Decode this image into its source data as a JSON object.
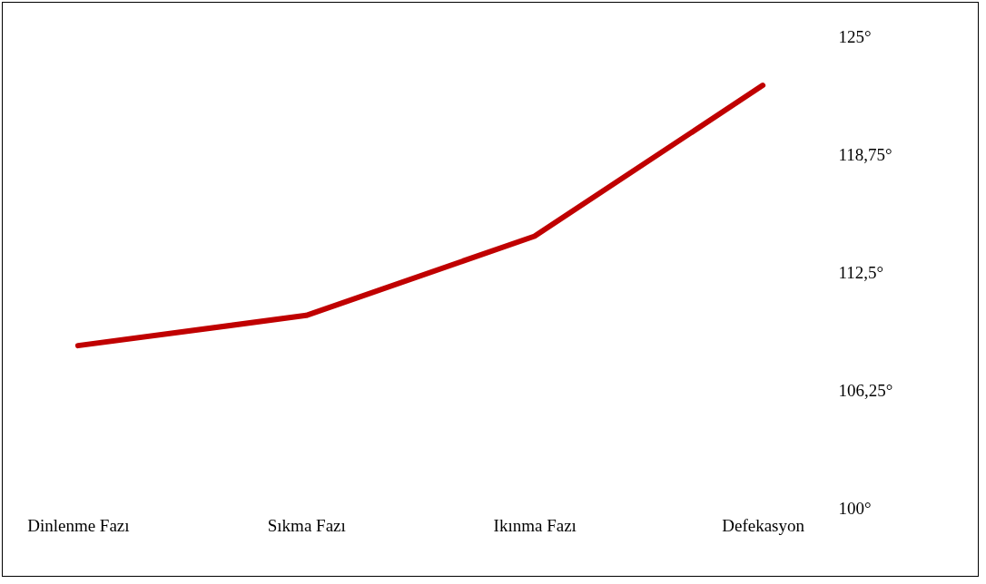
{
  "chart_data": {
    "type": "line",
    "categories": [
      "Dinlenme Fazı",
      "Sıkma Fazı",
      "Ikınma Fazı",
      "Defekasyon"
    ],
    "series": [
      {
        "color": "#c00000",
        "values": [
          108.6,
          110.2,
          114.4,
          122.4
        ]
      }
    ],
    "ylim": [
      100,
      125
    ],
    "yticks": [
      {
        "value": 100,
        "label": "100°"
      },
      {
        "value": 106.25,
        "label": "106,25°"
      },
      {
        "value": 112.5,
        "label": "112,5°"
      },
      {
        "value": 118.75,
        "label": "118,75°"
      },
      {
        "value": 125,
        "label": "125°"
      }
    ],
    "grid": false,
    "marker": "none",
    "line_style": "solid"
  }
}
